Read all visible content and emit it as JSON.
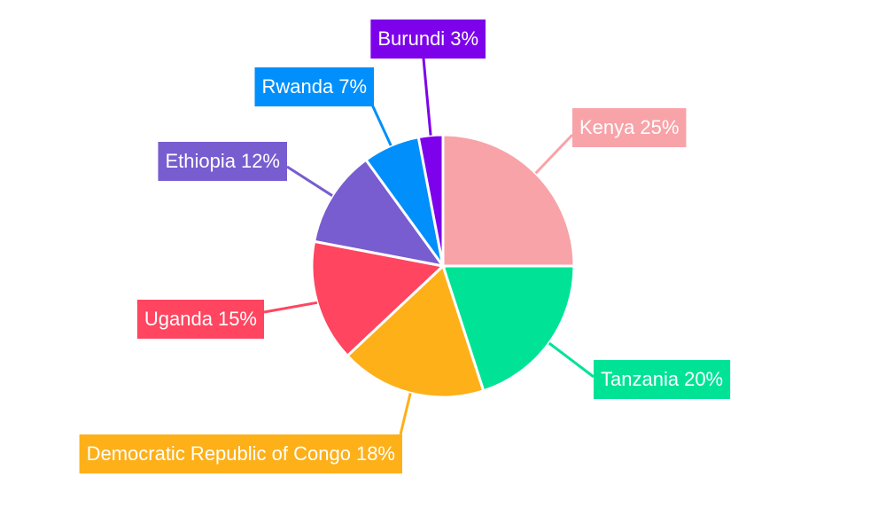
{
  "chart_data": {
    "type": "pie",
    "categories": [
      "Kenya",
      "Tanzania",
      "Democratic Republic of Congo",
      "Uganda",
      "Ethiopia",
      "Rwanda",
      "Burundi"
    ],
    "values": [
      25,
      20,
      18,
      15,
      12,
      7,
      3
    ],
    "value_labels": [
      "25%",
      "20%",
      "18%",
      "15%",
      "12%",
      "7%",
      "3%"
    ],
    "colors": [
      "#f8a3a8",
      "#00e396",
      "#feb019",
      "#ff4560",
      "#775dd0",
      "#008ffb",
      "#7d02eb"
    ]
  }
}
